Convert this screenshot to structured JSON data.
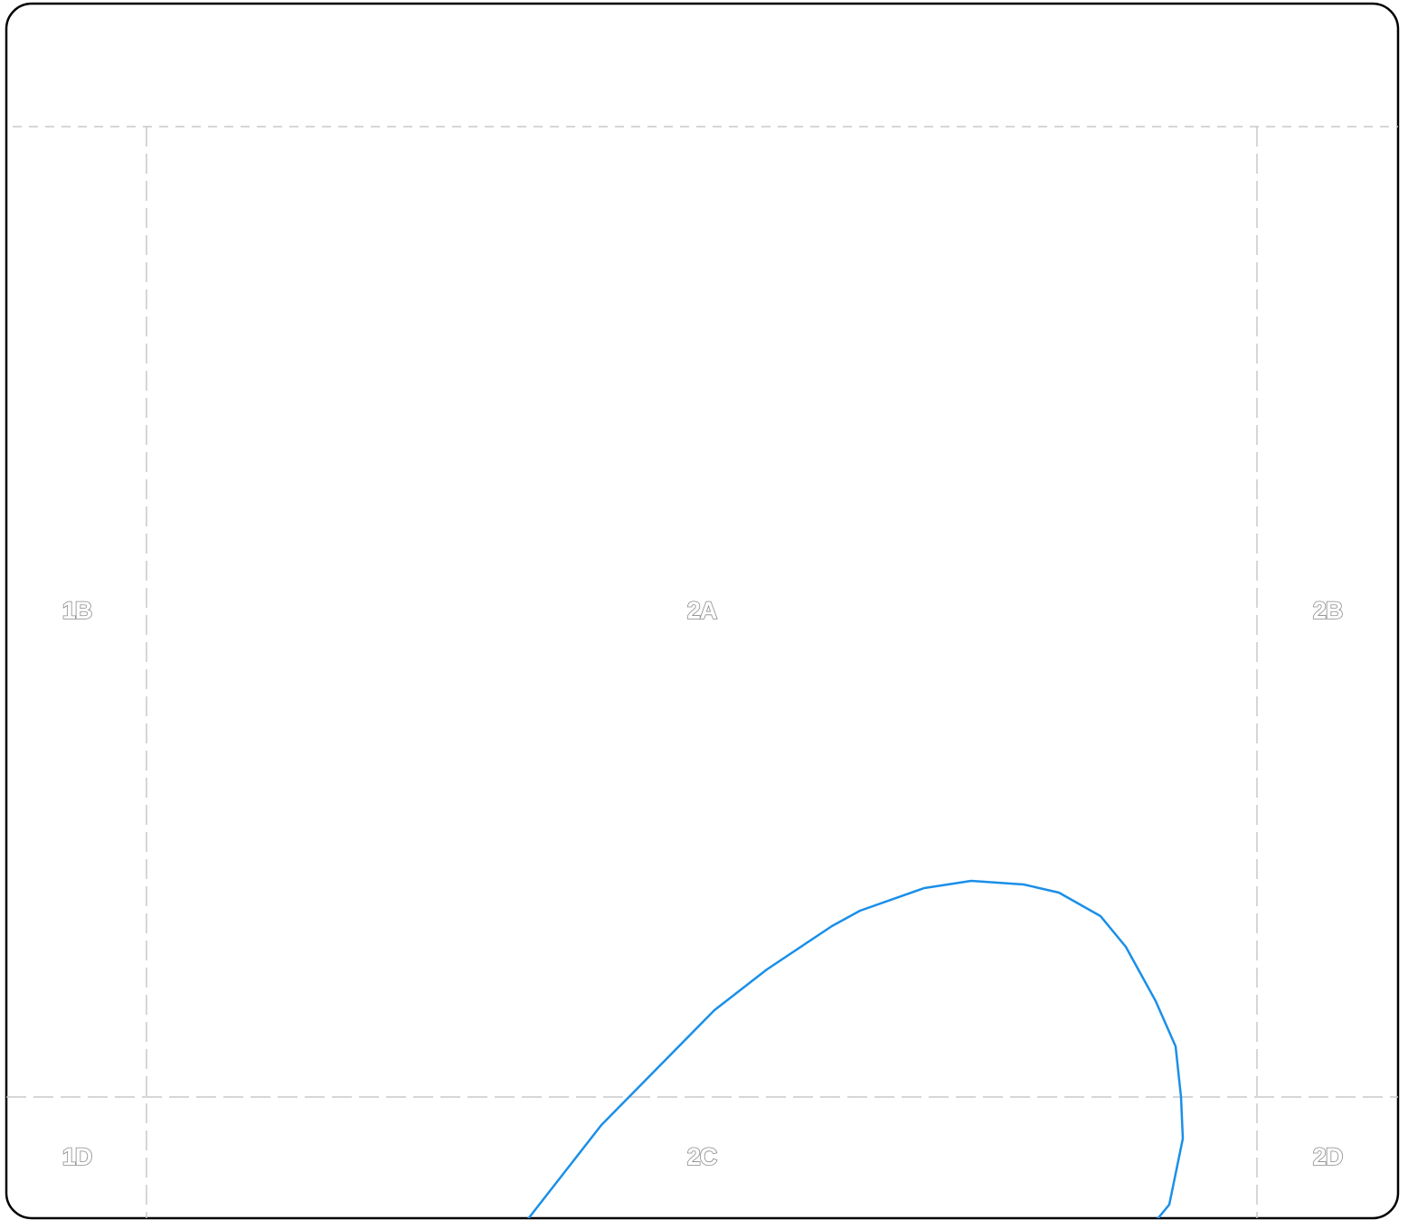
{
  "frame": {
    "border_color": "#000000",
    "guide_color": "#c8c8c8"
  },
  "zones": {
    "z1b": "1B",
    "z2a": "2A",
    "z2b": "2B",
    "z1d": "1D",
    "z2c": "2C",
    "z2d": "2D"
  },
  "curve": {
    "color": "#1a8fe8"
  }
}
